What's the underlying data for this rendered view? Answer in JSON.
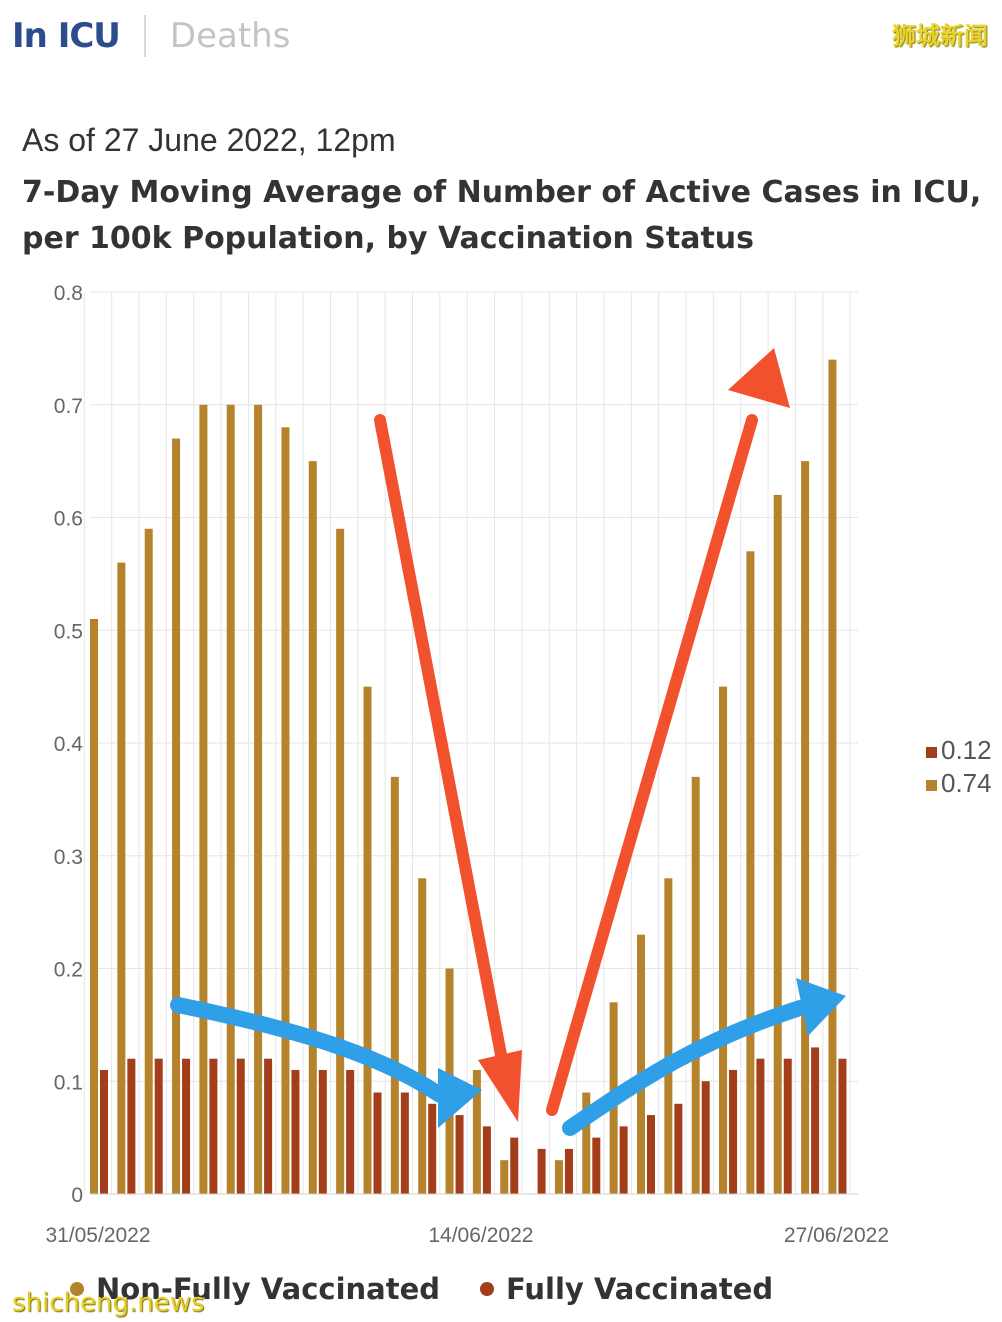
{
  "header": {
    "tab_active": "In ICU",
    "tab_inactive": "Deaths",
    "watermark_top": "狮城新闻"
  },
  "subtitle": "As of 27 June 2022, 12pm",
  "title": "7-Day Moving Average of Number of Active Cases in ICU, per 100k Population, by Vaccination Status",
  "watermark_bottom": "shicheng.news",
  "colors": {
    "non_fully": "#b5832c",
    "fully": "#a33d1a",
    "grid": "#e6e6e6",
    "red_arrow": "#f2512d",
    "blue_arrow": "#2f9fe8"
  },
  "chart_data": {
    "type": "bar",
    "ylim": [
      0,
      0.8
    ],
    "yticks": [
      "0",
      "0.1",
      "0.2",
      "0.3",
      "0.4",
      "0.5",
      "0.6",
      "0.7",
      "0.8"
    ],
    "xtick_labels": [
      {
        "label": "31/05/2022",
        "index": 0
      },
      {
        "label": "14/06/2022",
        "index": 14
      },
      {
        "label": "27/06/2022",
        "index": 27
      }
    ],
    "categories": [
      "31/05/2022",
      "01/06/2022",
      "02/06/2022",
      "03/06/2022",
      "04/06/2022",
      "05/06/2022",
      "06/06/2022",
      "07/06/2022",
      "08/06/2022",
      "09/06/2022",
      "10/06/2022",
      "11/06/2022",
      "12/06/2022",
      "13/06/2022",
      "14/06/2022",
      "15/06/2022",
      "16/06/2022",
      "17/06/2022",
      "18/06/2022",
      "19/06/2022",
      "20/06/2022",
      "21/06/2022",
      "22/06/2022",
      "23/06/2022",
      "24/06/2022",
      "25/06/2022",
      "26/06/2022",
      "27/06/2022"
    ],
    "series": [
      {
        "name": "Non-Fully Vaccinated",
        "values": [
          0.51,
          0.56,
          0.59,
          0.67,
          0.7,
          0.7,
          0.7,
          0.68,
          0.65,
          0.59,
          0.45,
          0.37,
          0.28,
          0.2,
          0.11,
          0.03,
          0.0,
          0.03,
          0.09,
          0.17,
          0.23,
          0.28,
          0.37,
          0.45,
          0.57,
          0.62,
          0.65,
          0.74
        ]
      },
      {
        "name": "Fully Vaccinated",
        "values": [
          0.11,
          0.12,
          0.12,
          0.12,
          0.12,
          0.12,
          0.12,
          0.11,
          0.11,
          0.11,
          0.09,
          0.09,
          0.08,
          0.07,
          0.06,
          0.05,
          0.04,
          0.04,
          0.05,
          0.06,
          0.07,
          0.08,
          0.1,
          0.11,
          0.12,
          0.12,
          0.13,
          0.12
        ]
      }
    ],
    "side_legend": [
      {
        "label": "0.12",
        "series": "Fully Vaccinated"
      },
      {
        "label": "0.74",
        "series": "Non-Fully Vaccinated"
      }
    ],
    "bottom_legend": [
      "Non-Fully Vaccinated",
      "Fully Vaccinated"
    ],
    "grid": true
  }
}
